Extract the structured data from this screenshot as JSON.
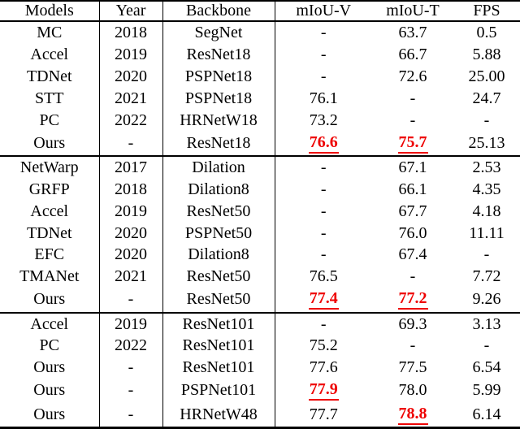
{
  "colors": {
    "text": "#000000",
    "highlight_red": "#ee0000",
    "border": "#000000",
    "background": "#ffffff"
  },
  "table": {
    "columns": [
      "Models",
      "Year",
      "Backbone",
      "mIoU-V",
      "mIoU-T",
      "FPS"
    ],
    "groups": [
      {
        "rows": [
          {
            "model": "MC",
            "bold": false,
            "year": "2018",
            "backbone": "SegNet",
            "miou_v": "-",
            "miou_v_hl": false,
            "miou_t": "63.7",
            "miou_t_hl": false,
            "fps": "0.5"
          },
          {
            "model": "Accel",
            "bold": false,
            "year": "2019",
            "backbone": "ResNet18",
            "miou_v": "-",
            "miou_v_hl": false,
            "miou_t": "66.7",
            "miou_t_hl": false,
            "fps": "5.88"
          },
          {
            "model": "TDNet",
            "bold": false,
            "year": "2020",
            "backbone": "PSPNet18",
            "miou_v": "-",
            "miou_v_hl": false,
            "miou_t": "72.6",
            "miou_t_hl": false,
            "fps": "25.00"
          },
          {
            "model": "STT",
            "bold": false,
            "year": "2021",
            "backbone": "PSPNet18",
            "miou_v": "76.1",
            "miou_v_hl": false,
            "miou_t": "-",
            "miou_t_hl": false,
            "fps": "24.7"
          },
          {
            "model": "PC",
            "bold": false,
            "year": "2022",
            "backbone": "HRNetW18",
            "miou_v": "73.2",
            "miou_v_hl": false,
            "miou_t": "-",
            "miou_t_hl": false,
            "fps": "-"
          },
          {
            "model": "Ours",
            "bold": true,
            "year": "-",
            "backbone": "ResNet18",
            "miou_v": "76.6",
            "miou_v_hl": true,
            "miou_t": "75.7",
            "miou_t_hl": true,
            "fps": "25.13"
          }
        ]
      },
      {
        "rows": [
          {
            "model": "NetWarp",
            "bold": false,
            "year": "2017",
            "backbone": "Dilation",
            "miou_v": "-",
            "miou_v_hl": false,
            "miou_t": "67.1",
            "miou_t_hl": false,
            "fps": "2.53"
          },
          {
            "model": "GRFP",
            "bold": false,
            "year": "2018",
            "backbone": "Dilation8",
            "miou_v": "-",
            "miou_v_hl": false,
            "miou_t": "66.1",
            "miou_t_hl": false,
            "fps": "4.35"
          },
          {
            "model": "Accel",
            "bold": false,
            "year": "2019",
            "backbone": "ResNet50",
            "miou_v": "-",
            "miou_v_hl": false,
            "miou_t": "67.7",
            "miou_t_hl": false,
            "fps": "4.18"
          },
          {
            "model": "TDNet",
            "bold": false,
            "year": "2020",
            "backbone": "PSPNet50",
            "miou_v": "-",
            "miou_v_hl": false,
            "miou_t": "76.0",
            "miou_t_hl": false,
            "fps": "11.11"
          },
          {
            "model": "EFC",
            "bold": false,
            "year": "2020",
            "backbone": "Dilation8",
            "miou_v": "-",
            "miou_v_hl": false,
            "miou_t": "67.4",
            "miou_t_hl": false,
            "fps": "-"
          },
          {
            "model": "TMANet",
            "bold": false,
            "year": "2021",
            "backbone": "ResNet50",
            "miou_v": "76.5",
            "miou_v_hl": false,
            "miou_t": "-",
            "miou_t_hl": false,
            "fps": "7.72"
          },
          {
            "model": "Ours",
            "bold": true,
            "year": "-",
            "backbone": "ResNet50",
            "miou_v": "77.4",
            "miou_v_hl": true,
            "miou_t": "77.2",
            "miou_t_hl": true,
            "fps": "9.26"
          }
        ]
      },
      {
        "rows": [
          {
            "model": "Accel",
            "bold": false,
            "year": "2019",
            "backbone": "ResNet101",
            "miou_v": "-",
            "miou_v_hl": false,
            "miou_t": "69.3",
            "miou_t_hl": false,
            "fps": "3.13"
          },
          {
            "model": "PC",
            "bold": false,
            "year": "2022",
            "backbone": "ResNet101",
            "miou_v": "75.2",
            "miou_v_hl": false,
            "miou_t": "-",
            "miou_t_hl": false,
            "fps": "-"
          },
          {
            "model": "Ours",
            "bold": true,
            "year": "-",
            "backbone": "ResNet101",
            "miou_v": "77.6",
            "miou_v_hl": false,
            "miou_t": "77.5",
            "miou_t_hl": false,
            "fps": "6.54"
          },
          {
            "model": "Ours",
            "bold": true,
            "year": "-",
            "backbone": "PSPNet101",
            "miou_v": "77.9",
            "miou_v_hl": true,
            "miou_t": "78.0",
            "miou_t_hl": false,
            "fps": "5.99"
          },
          {
            "model": "Ours",
            "bold": true,
            "year": "-",
            "backbone": "HRNetW48",
            "miou_v": "77.7",
            "miou_v_hl": false,
            "miou_t": "78.8",
            "miou_t_hl": true,
            "fps": "6.14"
          }
        ]
      }
    ]
  }
}
